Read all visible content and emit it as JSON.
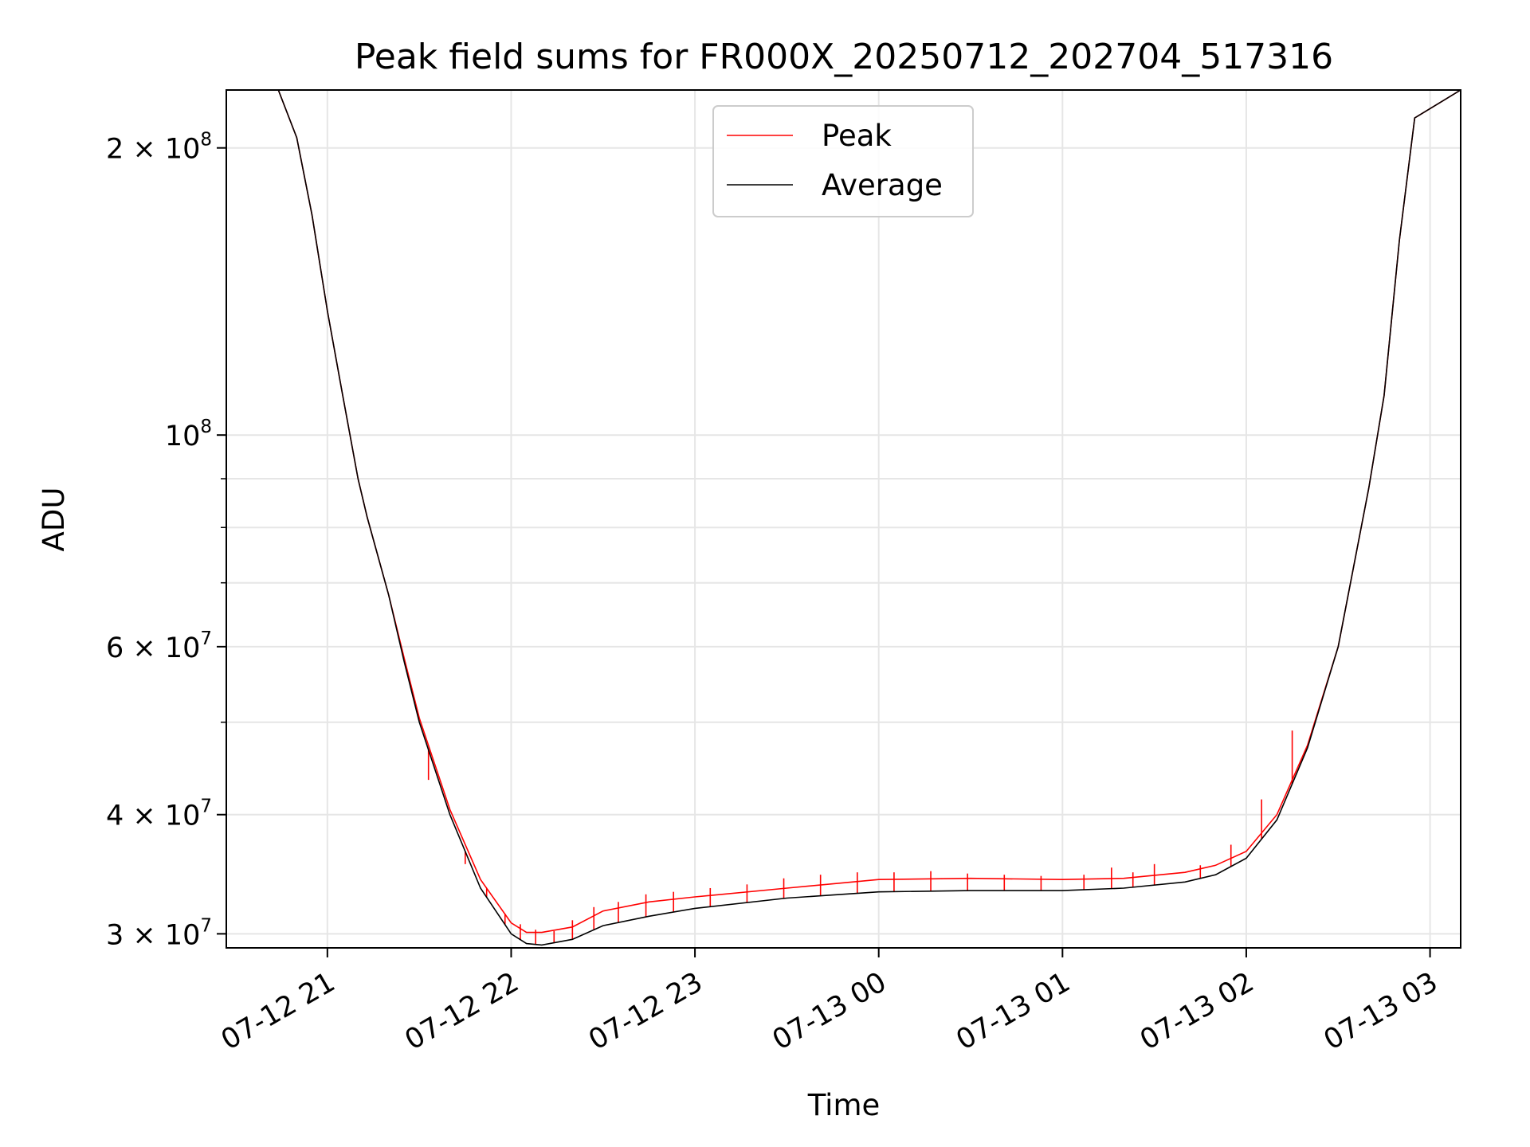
{
  "chart_data": {
    "type": "line",
    "title": "Peak field sums for FR000X_20250712_202704_517316",
    "xlabel": "Time",
    "ylabel": "ADU",
    "yscale": "log",
    "xlim": [
      "2025-07-12 20:27",
      "2025-07-13 03:10"
    ],
    "ylim": [
      29000000,
      230000000
    ],
    "x_ticks": [
      "07-12 21",
      "07-12 22",
      "07-12 23",
      "07-13 00",
      "07-13 01",
      "07-13 02",
      "07-13 03"
    ],
    "y_ticks": [
      {
        "value": 30000000,
        "mantissa": "3",
        "exp": "7"
      },
      {
        "value": 40000000,
        "mantissa": "4",
        "exp": "7"
      },
      {
        "value": 60000000,
        "mantissa": "6",
        "exp": "7"
      },
      {
        "value": 100000000,
        "mantissa": "",
        "exp": "8"
      },
      {
        "value": 200000000,
        "mantissa": "2",
        "exp": "8"
      }
    ],
    "grid": true,
    "legend": {
      "placement": "upper center",
      "entries": [
        {
          "name": "Peak",
          "color": "#ff0000"
        },
        {
          "name": "Average",
          "color": "#000000"
        }
      ]
    },
    "series": [
      {
        "name": "Average",
        "color": "#000000",
        "x": [
          "2025-07-12 20:27",
          "2025-07-12 20:44",
          "2025-07-12 20:50",
          "2025-07-12 20:55",
          "2025-07-12 21:00",
          "2025-07-12 21:05",
          "2025-07-12 21:10",
          "2025-07-12 21:13",
          "2025-07-12 21:20",
          "2025-07-12 21:25",
          "2025-07-12 21:30",
          "2025-07-12 21:40",
          "2025-07-12 21:50",
          "2025-07-12 22:00",
          "2025-07-12 22:05",
          "2025-07-12 22:10",
          "2025-07-12 22:20",
          "2025-07-12 22:30",
          "2025-07-12 22:45",
          "2025-07-12 23:00",
          "2025-07-12 23:30",
          "2025-07-13 00:00",
          "2025-07-13 00:30",
          "2025-07-13 01:00",
          "2025-07-13 01:20",
          "2025-07-13 01:40",
          "2025-07-13 01:50",
          "2025-07-13 02:00",
          "2025-07-13 02:10",
          "2025-07-13 02:20",
          "2025-07-13 02:30",
          "2025-07-13 02:40",
          "2025-07-13 02:45",
          "2025-07-13 02:50",
          "2025-07-13 02:55",
          "2025-07-13 03:10"
        ],
        "y": [
          230000000,
          230000000,
          205000000,
          170000000,
          135000000,
          110000000,
          90000000,
          82000000,
          68000000,
          58000000,
          50000000,
          40000000,
          33500000,
          30000000,
          29300000,
          29200000,
          29600000,
          30600000,
          31300000,
          31900000,
          32700000,
          33200000,
          33300000,
          33300000,
          33500000,
          34000000,
          34600000,
          36000000,
          39500000,
          47000000,
          60000000,
          88000000,
          110000000,
          160000000,
          215000000,
          230000000
        ]
      },
      {
        "name": "Peak",
        "color": "#ff0000",
        "x": [
          "2025-07-12 20:27",
          "2025-07-12 20:44",
          "2025-07-12 20:50",
          "2025-07-12 20:55",
          "2025-07-12 21:00",
          "2025-07-12 21:05",
          "2025-07-12 21:10",
          "2025-07-12 21:13",
          "2025-07-12 21:20",
          "2025-07-12 21:25",
          "2025-07-12 21:30",
          "2025-07-12 21:40",
          "2025-07-12 21:50",
          "2025-07-12 22:00",
          "2025-07-12 22:05",
          "2025-07-12 22:10",
          "2025-07-12 22:20",
          "2025-07-12 22:30",
          "2025-07-12 22:45",
          "2025-07-12 23:00",
          "2025-07-12 23:30",
          "2025-07-13 00:00",
          "2025-07-13 00:30",
          "2025-07-13 01:00",
          "2025-07-13 01:20",
          "2025-07-13 01:40",
          "2025-07-13 01:50",
          "2025-07-13 02:00",
          "2025-07-13 02:10",
          "2025-07-13 02:20",
          "2025-07-13 02:30",
          "2025-07-13 02:40",
          "2025-07-13 02:45",
          "2025-07-13 02:50",
          "2025-07-13 02:55",
          "2025-07-13 03:10"
        ],
        "y": [
          230000000,
          230000000,
          205000000,
          170000000,
          135000000,
          110000000,
          90000000,
          82000000,
          68000000,
          58500000,
          50500000,
          40500000,
          34200000,
          30800000,
          30100000,
          30100000,
          30500000,
          31700000,
          32400000,
          32800000,
          33500000,
          34200000,
          34300000,
          34200000,
          34300000,
          34800000,
          35400000,
          36600000,
          40000000,
          47300000,
          60000000,
          88000000,
          110000000,
          160000000,
          215000000,
          230000000
        ]
      }
    ],
    "peak_spikes": {
      "x": [
        "2025-07-12 21:33",
        "2025-07-12 21:45",
        "2025-07-12 21:52",
        "2025-07-12 21:58",
        "2025-07-12 22:03",
        "2025-07-12 22:08",
        "2025-07-12 22:14",
        "2025-07-12 22:20",
        "2025-07-12 22:27",
        "2025-07-12 22:35",
        "2025-07-12 22:44",
        "2025-07-12 22:53",
        "2025-07-12 23:05",
        "2025-07-12 23:17",
        "2025-07-12 23:29",
        "2025-07-12 23:41",
        "2025-07-12 23:53",
        "2025-07-13 00:05",
        "2025-07-13 00:17",
        "2025-07-13 00:29",
        "2025-07-13 00:41",
        "2025-07-13 00:53",
        "2025-07-13 01:07",
        "2025-07-13 01:16",
        "2025-07-13 01:23",
        "2025-07-13 01:30",
        "2025-07-13 01:45",
        "2025-07-13 01:55",
        "2025-07-13 02:05",
        "2025-07-13 02:15"
      ],
      "y": [
        43500000,
        35500000,
        33500000,
        31500000,
        30700000,
        30300000,
        30200000,
        31000000,
        32000000,
        32400000,
        33000000,
        33200000,
        33500000,
        33800000,
        34300000,
        34600000,
        34800000,
        34800000,
        34900000,
        34700000,
        34600000,
        34500000,
        34600000,
        35200000,
        34800000,
        35500000,
        35400000,
        37200000,
        41500000,
        49000000
      ]
    }
  }
}
